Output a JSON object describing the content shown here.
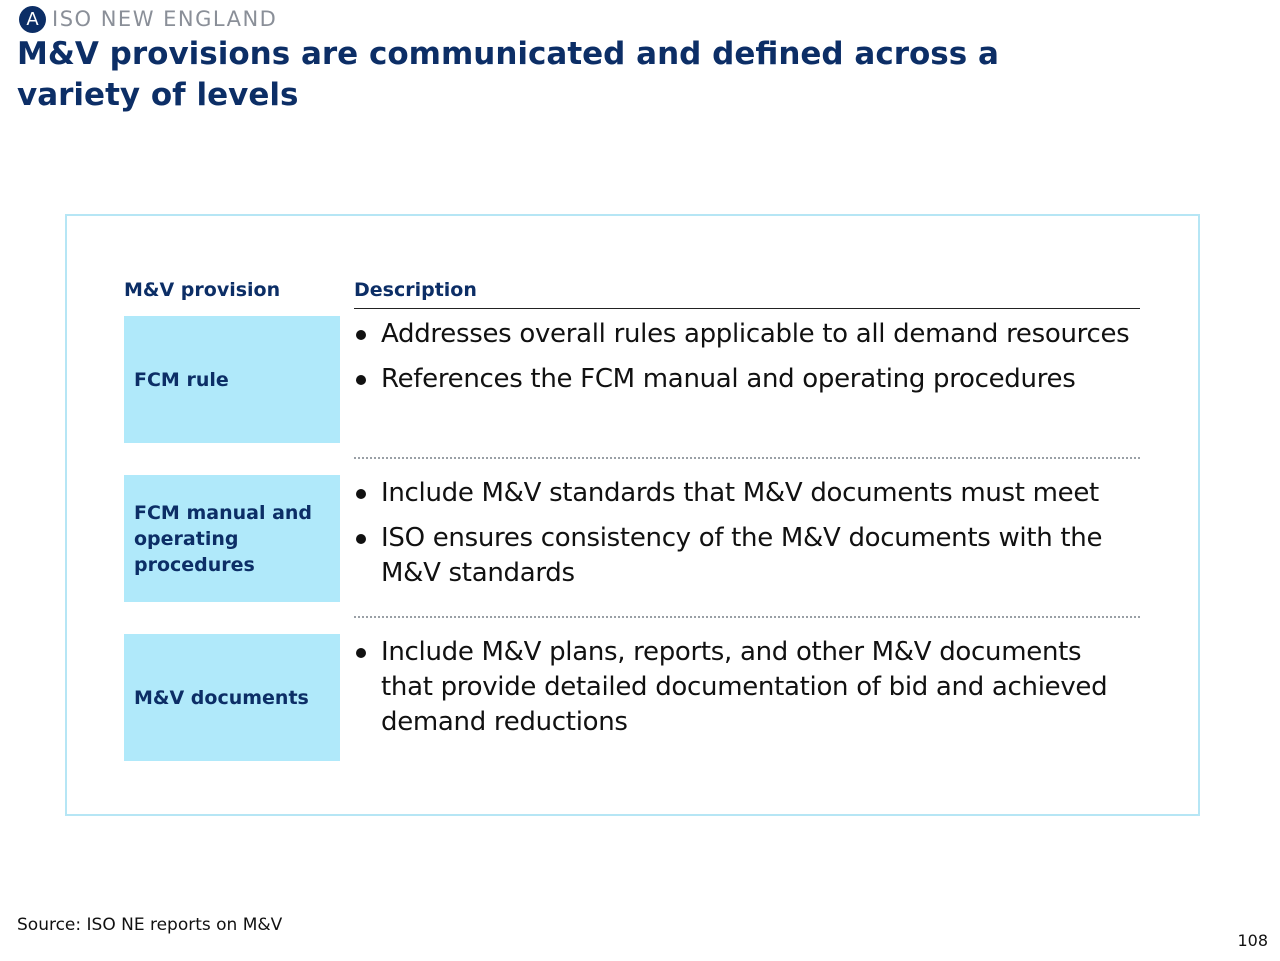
{
  "header": {
    "badge_letter": "A",
    "section": "ISO NEW ENGLAND",
    "title": "M&V provisions are communicated and defined across a variety of levels"
  },
  "table": {
    "col_provision": "M&V provision",
    "col_description": "Description",
    "rows": [
      {
        "provision": "FCM rule",
        "bullets": [
          "Addresses overall rules applicable to all demand resources",
          "References the FCM manual and operating procedures"
        ]
      },
      {
        "provision": "FCM manual and operating procedures",
        "bullets": [
          "Include M&V standards that M&V documents must meet",
          "ISO ensures consistency of the M&V documents with the M&V standards"
        ]
      },
      {
        "provision": "M&V documents",
        "bullets": [
          "Include M&V plans, reports, and other M&V documents that provide detailed documentation of bid and achieved demand reductions"
        ]
      }
    ]
  },
  "footer": {
    "source": "Source: ISO NE reports on M&V",
    "page_number": "108"
  },
  "colors": {
    "brand_navy": "#0c2e66",
    "provision_fill": "#b0e9fa",
    "frame_border": "#b6e6f5"
  }
}
